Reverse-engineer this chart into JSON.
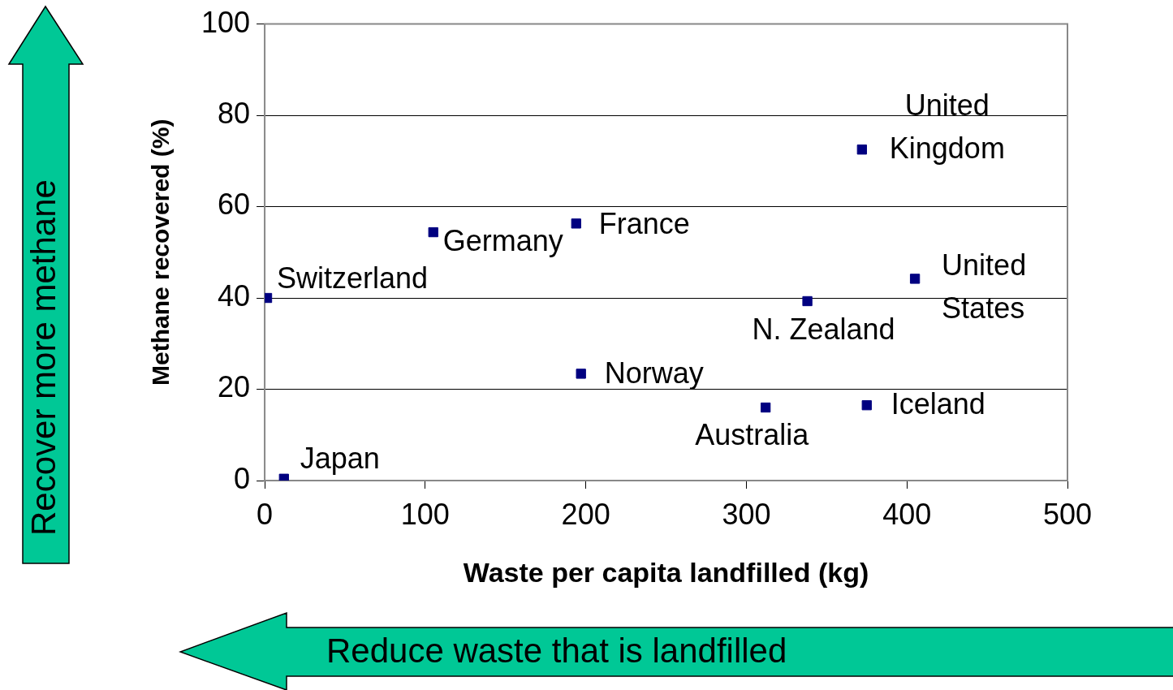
{
  "chart_data": {
    "type": "scatter",
    "xlabel": "Waste per capita landfilled (kg)",
    "ylabel": "Methane recovered (%)",
    "x": [
      1.5,
      12,
      105,
      194,
      197,
      312,
      338,
      372,
      405,
      375
    ],
    "values": [
      40,
      0.4,
      54.4,
      56.3,
      23.4,
      16,
      39.3,
      72.5,
      44.2,
      16.5
    ],
    "color": "#000080",
    "marker": "square",
    "grid": "y",
    "legend": false,
    "xlim": [
      0,
      500
    ],
    "xticks": [
      0,
      100,
      200,
      300,
      400,
      500
    ],
    "ylim": [
      0,
      100
    ],
    "yticks": [
      0,
      20,
      40,
      60,
      80,
      100
    ],
    "annotations": [
      "Recover more methane",
      "Reduce waste that is landfilled",
      {
        "text": "Switzerland",
        "x": 1.5,
        "y": 40
      },
      {
        "text": "Japan",
        "x": 12,
        "y": 0.4
      },
      {
        "text": "Germany",
        "x": 105,
        "y": 54.4
      },
      {
        "text": "France",
        "x": 194,
        "y": 56.3
      },
      {
        "text": "Norway",
        "x": 197,
        "y": 23.4
      },
      {
        "text": "Australia",
        "x": 312,
        "y": 16
      },
      {
        "text": "N. Zealand",
        "x": 338,
        "y": 39.3
      },
      {
        "text": "United Kingdom",
        "x": 372,
        "y": 72.5
      },
      {
        "text": "United States",
        "x": 405,
        "y": 44.2
      },
      {
        "text": "Iceland",
        "x": 375,
        "y": 16.5
      }
    ]
  }
}
